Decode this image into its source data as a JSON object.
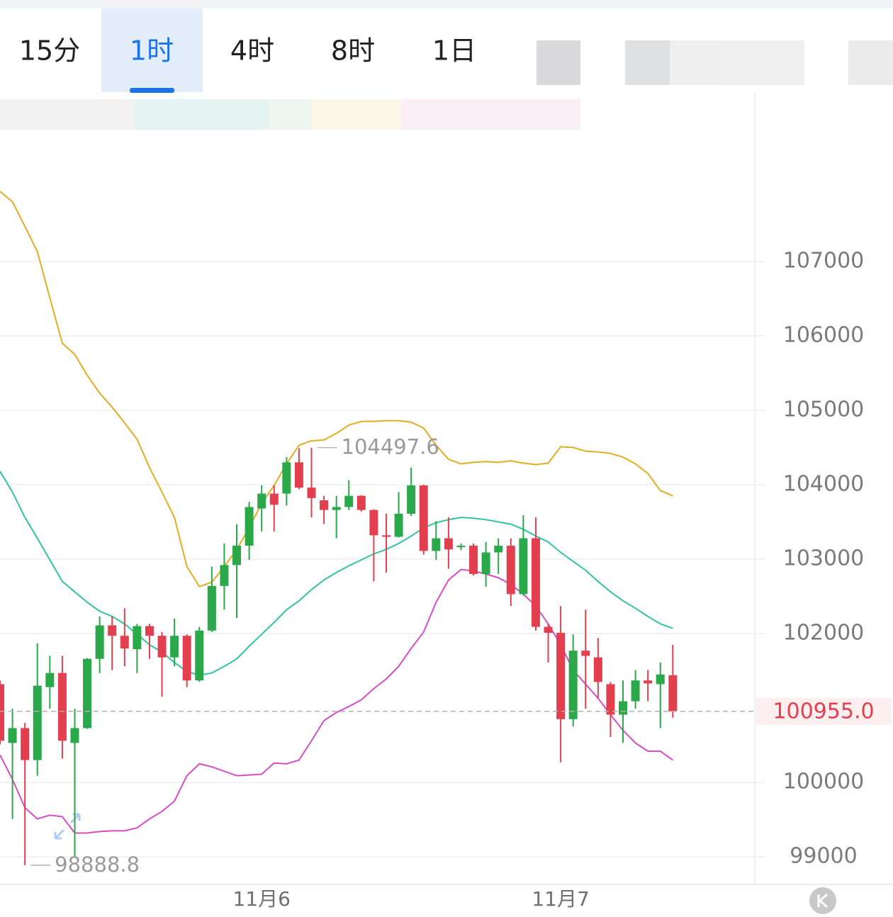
{
  "tabs": [
    "15分",
    "1时",
    "4时",
    "8时",
    "1日"
  ],
  "active_tab": "1时",
  "chart_data": {
    "type": "candlestick",
    "categories": [
      null,
      null,
      null,
      null,
      null,
      null,
      null,
      null,
      null,
      null,
      null,
      null,
      null,
      null,
      null,
      null,
      null,
      null,
      null,
      null,
      null,
      "11月6",
      null,
      null,
      null,
      null,
      null,
      null,
      null,
      null,
      null,
      null,
      null,
      null,
      null,
      null,
      null,
      null,
      null,
      null,
      null,
      null,
      null,
      null,
      null,
      "11月7",
      null,
      null,
      null,
      null,
      null,
      null,
      null,
      null,
      null
    ],
    "open": [
      101320,
      100530,
      100730,
      100300,
      101280,
      101470,
      100530,
      100730,
      101660,
      102110,
      101970,
      101790,
      102100,
      101970,
      101680,
      101970,
      101370,
      102040,
      102640,
      102920,
      103180,
      103680,
      103880,
      103880,
      104300,
      103960,
      103790,
      103660,
      103700,
      103850,
      103660,
      103320,
      103300,
      103610,
      103990,
      103110,
      103280,
      103160,
      103180,
      102800,
      103090,
      103180,
      102530,
      103280,
      102090,
      102010,
      100850,
      101770,
      101680,
      101320,
      100910,
      101090,
      101370,
      101320,
      101440
    ],
    "high": [
      101370,
      100990,
      100800,
      101870,
      101700,
      101700,
      100990,
      101670,
      102230,
      102230,
      102340,
      102130,
      102130,
      102020,
      102200,
      101990,
      102090,
      102900,
      103210,
      103470,
      103770,
      103990,
      103990,
      104370,
      104490,
      104497.6,
      103850,
      103850,
      104060,
      103860,
      103670,
      103610,
      103900,
      104230,
      104000,
      103510,
      103560,
      103210,
      103210,
      103230,
      103280,
      103280,
      103590,
      103560,
      102130,
      102370,
      101990,
      102320,
      101940,
      101350,
      101370,
      101510,
      101510,
      101610,
      101850
    ],
    "low": [
      100510,
      99510,
      98888.8,
      100090,
      100990,
      100320,
      98990,
      100720,
      101470,
      101510,
      101560,
      101470,
      101660,
      101150,
      101560,
      101280,
      101350,
      102020,
      102320,
      102210,
      102990,
      103370,
      103370,
      103720,
      103940,
      103560,
      103470,
      103280,
      103660,
      103640,
      102700,
      102820,
      103290,
      103580,
      103060,
      102990,
      102870,
      103120,
      102780,
      102630,
      102800,
      102370,
      102510,
      102040,
      101610,
      100270,
      100750,
      100990,
      101130,
      100610,
      100530,
      100990,
      101090,
      100730,
      100870
    ],
    "close": [
      100560,
      100730,
      100300,
      101300,
      101470,
      100560,
      100730,
      101660,
      102110,
      101970,
      101800,
      102100,
      101970,
      101680,
      101970,
      101370,
      102040,
      102640,
      102920,
      103180,
      103700,
      103880,
      103730,
      104300,
      103960,
      103820,
      103660,
      103700,
      103850,
      103660,
      103320,
      103300,
      103610,
      103990,
      103110,
      103280,
      103130,
      103180,
      102800,
      103090,
      103180,
      102530,
      103280,
      102090,
      102010,
      100850,
      101770,
      101700,
      101350,
      100910,
      101090,
      101370,
      101330,
      101450,
      100955
    ],
    "up_color": "#2aa84a",
    "down_color": "#e3404f",
    "series": [
      {
        "color": "#e2ad22",
        "values": [
          107940,
          107800,
          107470,
          107130,
          106510,
          105900,
          105750,
          105470,
          105230,
          105040,
          104830,
          104610,
          104230,
          103900,
          103560,
          102900,
          102630,
          102690,
          102900,
          103130,
          103420,
          103750,
          103990,
          104280,
          104530,
          104590,
          104600,
          104690,
          104800,
          104850,
          104850,
          104860,
          104860,
          104840,
          104760,
          104530,
          104340,
          104280,
          104300,
          104310,
          104300,
          104320,
          104290,
          104270,
          104290,
          104510,
          104500,
          104450,
          104440,
          104420,
          104370,
          104280,
          104150,
          103920,
          103850
        ]
      },
      {
        "color": "#30c3a5",
        "values": [
          104180,
          103900,
          103560,
          103280,
          102990,
          102700,
          102560,
          102420,
          102300,
          102230,
          102130,
          101990,
          101850,
          101750,
          101610,
          101490,
          101440,
          101470,
          101560,
          101660,
          101830,
          101990,
          102150,
          102320,
          102440,
          102590,
          102720,
          102820,
          102910,
          102990,
          103070,
          103130,
          103210,
          103310,
          103420,
          103490,
          103530,
          103560,
          103550,
          103530,
          103500,
          103470,
          103400,
          103310,
          103230,
          103090,
          102970,
          102850,
          102700,
          102560,
          102440,
          102340,
          102230,
          102130,
          102070
        ]
      },
      {
        "color": "#d84cc6",
        "values": [
          100370,
          100040,
          99660,
          99510,
          99560,
          99540,
          99320,
          99320,
          99340,
          99350,
          99350,
          99390,
          99510,
          99610,
          99750,
          100090,
          100250,
          100210,
          100150,
          100090,
          100100,
          100110,
          100260,
          100250,
          100300,
          100560,
          100830,
          100940,
          101020,
          101110,
          101260,
          101390,
          101560,
          101800,
          102020,
          102420,
          102720,
          102860,
          102840,
          102800,
          102750,
          102660,
          102530,
          102370,
          102130,
          101850,
          101510,
          101320,
          101130,
          100910,
          100700,
          100530,
          100420,
          100420,
          100300
        ]
      }
    ],
    "ylim": [
      98630,
      108750
    ],
    "yticks": [
      99000,
      100000,
      102000,
      103000,
      104000,
      105000,
      106000,
      107000
    ],
    "grid": true,
    "max_label": 104497.6,
    "min_label": 98888.8,
    "last_price": {
      "value": 100955,
      "label": "100955.0"
    }
  }
}
